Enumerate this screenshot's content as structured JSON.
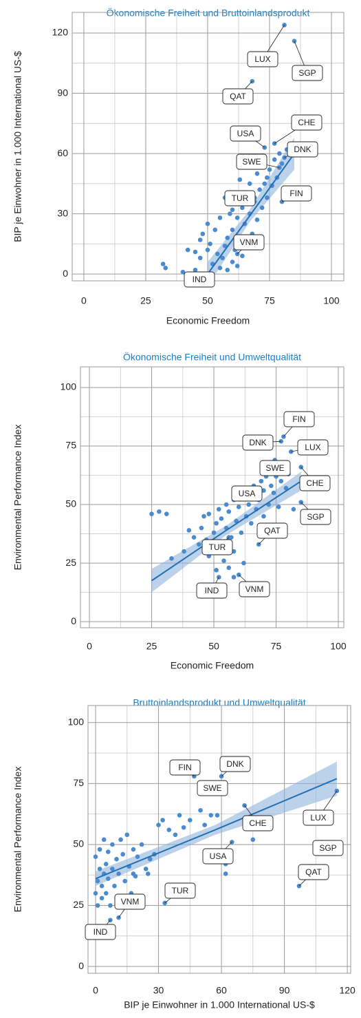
{
  "chart_data": [
    {
      "type": "scatter",
      "title": "Ökonomische Freiheit und Bruttoinlandsprodukt",
      "x_label": "Economic Freedom",
      "y_label": "BIP je Einwohner in 1.000 International US-$",
      "color": "#4a8bd0",
      "fit_color": "#1f6fb5",
      "grid": true,
      "xlim": [
        -4.7,
        105
      ],
      "ylim": [
        -3.4,
        130.3
      ],
      "xticks": [
        0,
        25,
        50,
        75,
        100
      ],
      "yticks": [
        0,
        30,
        60,
        90,
        120
      ],
      "x": [
        32,
        33,
        40,
        42,
        45,
        47,
        48,
        50,
        51,
        52,
        53,
        54,
        55,
        56,
        57,
        58,
        58,
        59,
        60,
        60,
        61,
        62,
        62,
        63,
        64,
        64,
        65,
        65,
        66,
        67,
        67,
        68,
        69,
        70,
        70,
        71,
        72,
        72,
        73,
        74,
        74,
        75,
        76,
        77,
        78,
        79,
        80,
        82,
        57,
        60,
        63,
        55,
        47,
        45,
        50
      ],
      "values": [
        5,
        3,
        1,
        12,
        11,
        8,
        20,
        25,
        15,
        5,
        22,
        10,
        3,
        8,
        14,
        18,
        2,
        30,
        6,
        22,
        12,
        28,
        4,
        18,
        33,
        9,
        25,
        40,
        15,
        30,
        45,
        20,
        38,
        27,
        50,
        42,
        33,
        55,
        45,
        38,
        48,
        52,
        44,
        57,
        48,
        60,
        55,
        62,
        38,
        32,
        47,
        28,
        17,
        2,
        12
      ],
      "annotations": [
        {
          "text": "LUX",
          "x": 81,
          "y": 124
        },
        {
          "text": "SGP",
          "x": 85,
          "y": 116
        },
        {
          "text": "QAT",
          "x": 68,
          "y": 96
        },
        {
          "text": "CHE",
          "x": 77,
          "y": 65
        },
        {
          "text": "USA",
          "x": 73,
          "y": 63
        },
        {
          "text": "DNK",
          "x": 81,
          "y": 58
        },
        {
          "text": "SWE",
          "x": 79,
          "y": 53
        },
        {
          "text": "FIN",
          "x": 80,
          "y": 36
        },
        {
          "text": "TUR",
          "x": 69,
          "y": 36
        },
        {
          "text": "VNM",
          "x": 62,
          "y": 10
        },
        {
          "text": "IND",
          "x": 51,
          "y": 0
        }
      ],
      "fit": {
        "x": [
          50,
          67,
          85
        ],
        "y": [
          0,
          29,
          60
        ],
        "lower": [
          -6,
          26,
          52
        ],
        "upper": [
          6,
          32,
          68
        ]
      }
    },
    {
      "type": "scatter",
      "title": "Ökonomische Freiheit und Umweltqualität",
      "x_label": "Economic Freedom",
      "y_label": "Environmental Performance Index",
      "color": "#4a8bd0",
      "fit_color": "#1f6fb5",
      "grid": true,
      "xlim": [
        -3.6,
        102.2
      ],
      "ylim": [
        -2.6,
        108.8
      ],
      "xticks": [
        0,
        25,
        50,
        75,
        100
      ],
      "yticks": [
        0,
        25,
        50,
        75,
        100
      ],
      "x": [
        25,
        28,
        31,
        33,
        38,
        40,
        42,
        44,
        45,
        46,
        47,
        48,
        48,
        50,
        51,
        52,
        52,
        53,
        54,
        55,
        55,
        56,
        57,
        58,
        58,
        59,
        60,
        61,
        62,
        62,
        63,
        64,
        65,
        66,
        67,
        68,
        69,
        70,
        70,
        71,
        72,
        73,
        74,
        75,
        76,
        77,
        79,
        80,
        82,
        51,
        56,
        58,
        49
      ],
      "values": [
        46,
        47,
        46,
        27,
        30,
        39,
        36,
        33,
        40,
        45,
        35,
        46,
        28,
        38,
        42,
        32,
        48,
        44,
        26,
        40,
        50,
        47,
        36,
        52,
        30,
        43,
        49,
        38,
        55,
        25,
        45,
        50,
        42,
        58,
        48,
        52,
        60,
        45,
        56,
        62,
        50,
        58,
        55,
        62,
        49,
        60,
        57,
        63,
        48,
        22,
        23,
        19,
        30
      ],
      "annotations": [
        {
          "text": "FIN",
          "x": 78,
          "y": 79
        },
        {
          "text": "DNK",
          "x": 77,
          "y": 77
        },
        {
          "text": "LUX",
          "x": 81,
          "y": 72.6
        },
        {
          "text": "SWE",
          "x": 74.5,
          "y": 69
        },
        {
          "text": "CHE",
          "x": 85,
          "y": 66
        },
        {
          "text": "USA",
          "x": 68,
          "y": 56
        },
        {
          "text": "SGP",
          "x": 85,
          "y": 51
        },
        {
          "text": "QAT",
          "x": 68,
          "y": 33
        },
        {
          "text": "TUR",
          "x": 56,
          "y": 36
        },
        {
          "text": "IND",
          "x": 52,
          "y": 19
        },
        {
          "text": "VNM",
          "x": 60,
          "y": 20
        }
      ],
      "fit": {
        "x": [
          25,
          55,
          85
        ],
        "y": [
          17.5,
          39,
          60
        ],
        "lower": [
          12.5,
          37,
          56
        ],
        "upper": [
          22.5,
          41,
          64
        ]
      }
    },
    {
      "type": "scatter",
      "title": "Bruttoinlandsprodukt und Umweltqualität",
      "x_label": "BIP je Einwohner in 1.000 International US-$",
      "y_label": "Environmental Performance Index",
      "color": "#4a8bd0",
      "fit_color": "#1f6fb5",
      "grid": true,
      "xlim": [
        -3.6,
        121.6
      ],
      "ylim": [
        -2.8,
        107
      ],
      "xticks": [
        0,
        30,
        60,
        90,
        120
      ],
      "yticks": [
        0,
        25,
        50,
        75,
        100
      ],
      "x": [
        0,
        0,
        1,
        1,
        2,
        2,
        3,
        3,
        4,
        4,
        5,
        5,
        6,
        6,
        7,
        8,
        8,
        9,
        10,
        10,
        11,
        12,
        13,
        14,
        15,
        16,
        17,
        18,
        19,
        20,
        22,
        24,
        25,
        28,
        30,
        32,
        35,
        38,
        40,
        42,
        45,
        50,
        52,
        55,
        58,
        62,
        64,
        75,
        62,
        18,
        26
      ],
      "values": [
        30,
        45,
        35,
        25,
        40,
        48,
        33,
        28,
        52,
        38,
        42,
        30,
        36,
        47,
        25,
        40,
        50,
        33,
        44,
        28,
        38,
        52,
        46,
        35,
        54,
        41,
        30,
        48,
        37,
        45,
        50,
        40,
        38,
        46,
        58,
        60,
        56,
        54,
        62,
        57,
        60,
        64,
        58,
        62,
        62,
        42,
        46,
        52,
        38,
        38,
        44
      ],
      "annotations": [
        {
          "text": "FIN",
          "x": 47,
          "y": 78
        },
        {
          "text": "DNK",
          "x": 60,
          "y": 78
        },
        {
          "text": "LUX",
          "x": 115,
          "y": 72
        },
        {
          "text": "SWE",
          "x": 52,
          "y": 73
        },
        {
          "text": "CHE",
          "x": 71,
          "y": 66
        },
        {
          "text": "USA",
          "x": 65,
          "y": 51
        },
        {
          "text": "SGP",
          "x": 108,
          "y": 51
        },
        {
          "text": "QAT",
          "x": 97,
          "y": 33
        },
        {
          "text": "TUR",
          "x": 33,
          "y": 26
        },
        {
          "text": "VNM",
          "x": 11,
          "y": 20
        },
        {
          "text": "IND",
          "x": 7,
          "y": 19
        }
      ],
      "fit": {
        "x": [
          0,
          57,
          115
        ],
        "y": [
          36,
          56,
          77
        ],
        "lower": [
          33,
          54,
          70
        ],
        "upper": [
          39,
          58,
          84
        ]
      }
    }
  ]
}
